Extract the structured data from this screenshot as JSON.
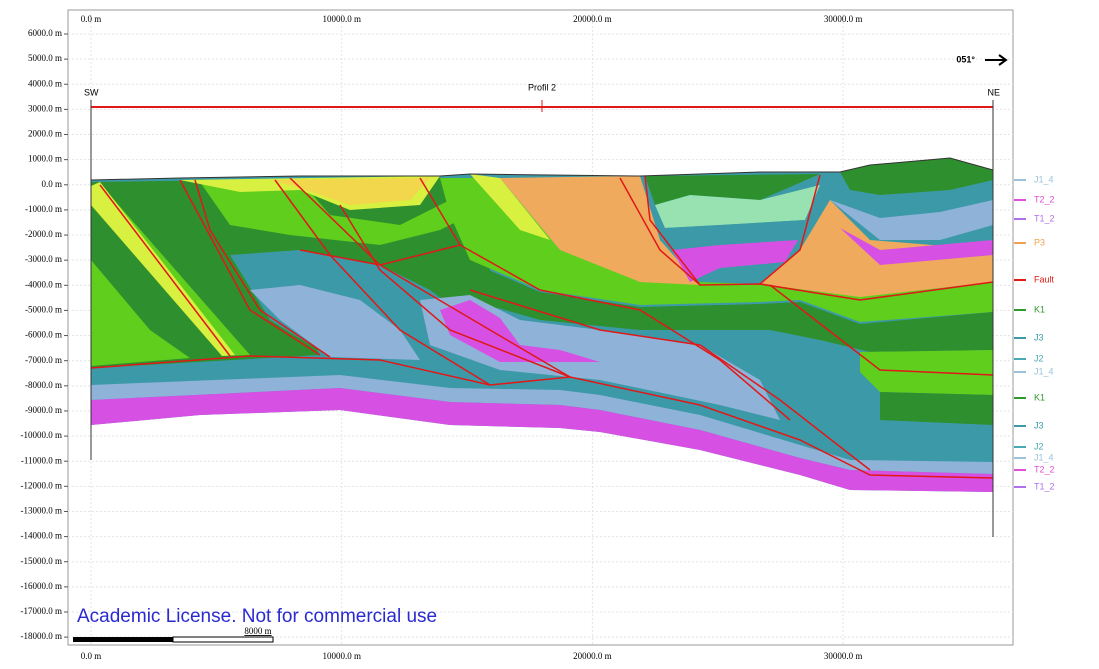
{
  "x_axis": {
    "ticks": [
      "0.0 m",
      "10000.0 m",
      "20000.0 m",
      "30000.0 m"
    ]
  },
  "y_axis": {
    "ticks": [
      "6000.0 m",
      "5000.0 m",
      "4000.0 m",
      "3000.0 m",
      "2000.0 m",
      "1000.0 m",
      "0.0 m",
      "-1000.0 m",
      "-2000.0 m",
      "-3000.0 m",
      "-4000.0 m",
      "-5000.0 m",
      "-6000.0 m",
      "-7000.0 m",
      "-8000.0 m",
      "-9000.0 m",
      "-10000.0 m",
      "-11000.0 m",
      "-12000.0 m",
      "-13000.0 m",
      "-14000.0 m",
      "-15000.0 m",
      "-16000.0 m",
      "-17000.0 m",
      "-18000.0 m"
    ]
  },
  "profile": {
    "title": "Profil 2",
    "left": "SW",
    "right": "NE"
  },
  "azimuth": "051°",
  "legend": [
    {
      "label": "J1_4",
      "color": "#9cc3da"
    },
    {
      "label": "T2_2",
      "color": "#e050d8"
    },
    {
      "label": "T1_2",
      "color": "#b070e8"
    },
    {
      "label": "P3",
      "color": "#f0a050"
    },
    {
      "label": "Fault",
      "color": "#e01818"
    },
    {
      "label": "K1",
      "color": "#2e9a2e"
    },
    {
      "label": "J3",
      "color": "#3c9aa8"
    },
    {
      "label": "J2",
      "color": "#4aa8b4"
    },
    {
      "label": "J1_4",
      "color": "#9cc3da"
    },
    {
      "label": "K1",
      "color": "#2e9a2e"
    },
    {
      "label": "J3",
      "color": "#3c9aa8"
    },
    {
      "label": "J2",
      "color": "#4aa8b4"
    },
    {
      "label": "J1_4",
      "color": "#9cc3da"
    },
    {
      "label": "T2_2",
      "color": "#e050d8"
    },
    {
      "label": "T1_2",
      "color": "#b070e8"
    }
  ],
  "watermark": "Academic License. Not for commercial use",
  "scale_bar": "8000 m"
}
